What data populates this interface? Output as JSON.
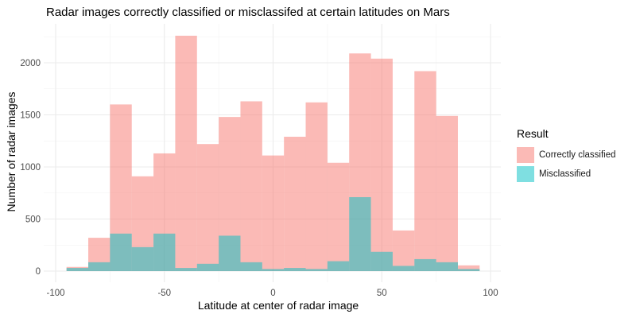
{
  "chart_data": {
    "type": "bar",
    "title": "Radar images correctly classified or misclassifed at certain latitudes on Mars",
    "xlabel": "Latitude at center of radar image",
    "ylabel": "Number of radar images",
    "xlim": [
      -100,
      100
    ],
    "ylim": [
      0,
      2300
    ],
    "x_ticks": [
      -100,
      -50,
      0,
      50,
      100
    ],
    "y_ticks": [
      0,
      500,
      1000,
      1500,
      2000
    ],
    "bin_width": 10,
    "grid": true,
    "legend_title": "Result",
    "legend_position": "right",
    "x": [
      -90,
      -80,
      -70,
      -60,
      -50,
      -40,
      -30,
      -20,
      -10,
      0,
      10,
      20,
      30,
      40,
      50,
      60,
      70,
      80,
      90
    ],
    "series": [
      {
        "name": "Correctly classified",
        "color": "#F8766D",
        "values": [
          40,
          320,
          1600,
          910,
          1130,
          2260,
          1220,
          1480,
          1630,
          1110,
          1290,
          1620,
          1040,
          2090,
          2040,
          390,
          1920,
          1490,
          55
        ]
      },
      {
        "name": "Misclassified",
        "color": "#00BFC4",
        "values": [
          30,
          85,
          360,
          230,
          360,
          30,
          70,
          340,
          85,
          20,
          30,
          20,
          95,
          710,
          185,
          50,
          115,
          85,
          20
        ]
      }
    ]
  }
}
